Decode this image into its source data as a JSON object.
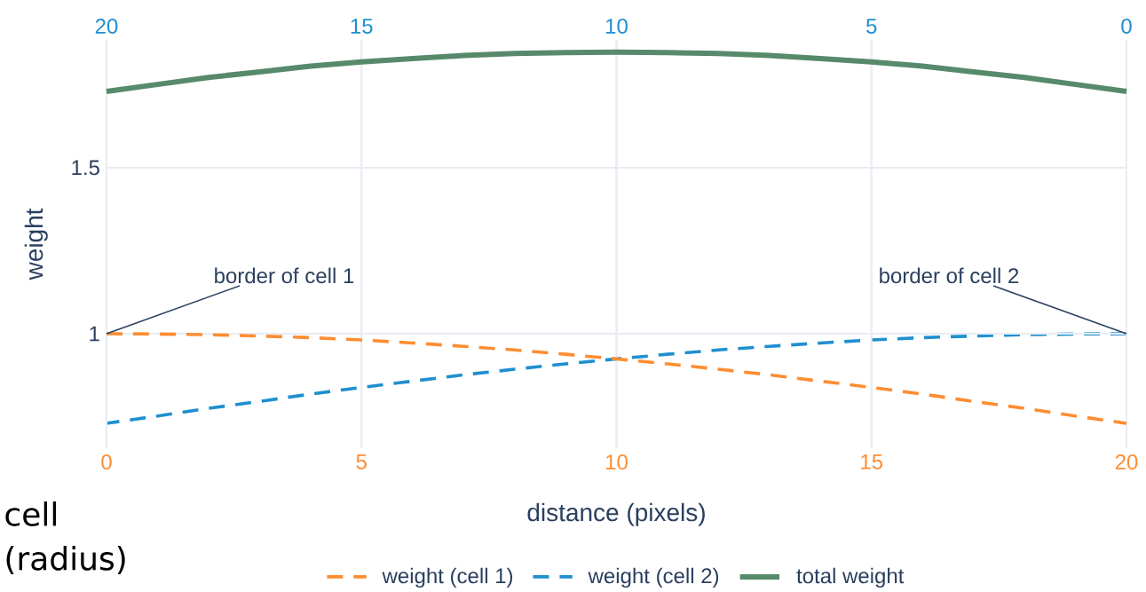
{
  "chart_data": {
    "type": "line",
    "xlabel": "distance (pixels)",
    "ylabel": "weight",
    "xlim": [
      0,
      20
    ],
    "xticks": [
      0,
      5,
      10,
      15,
      20
    ],
    "x2lim": [
      20,
      0
    ],
    "x2ticks": [
      20,
      15,
      10,
      5,
      0
    ],
    "ylim": [
      0.655,
      1.885
    ],
    "yticks": [
      1,
      1.5
    ],
    "grid": true,
    "legend": "bottom",
    "series": [
      {
        "name": "weight (cell 1)",
        "color": "#fd8d32",
        "line_style": "dashed",
        "x": [
          0,
          1,
          2,
          3,
          4,
          5,
          6,
          7,
          8,
          9,
          10,
          11,
          12,
          13,
          14,
          15,
          16,
          17,
          18,
          19,
          20
        ],
        "values": [
          1.0,
          0.999,
          0.997,
          0.993,
          0.988,
          0.981,
          0.972,
          0.962,
          0.951,
          0.938,
          0.924,
          0.909,
          0.893,
          0.876,
          0.857,
          0.838,
          0.818,
          0.796,
          0.775,
          0.752,
          0.73
        ]
      },
      {
        "name": "weight (cell 2)",
        "color": "#1f8fcf",
        "line_style": "dashed",
        "axis": "x2",
        "x": [
          0,
          1,
          2,
          3,
          4,
          5,
          6,
          7,
          8,
          9,
          10,
          11,
          12,
          13,
          14,
          15,
          16,
          17,
          18,
          19,
          20
        ],
        "values": [
          1.0,
          0.999,
          0.997,
          0.993,
          0.988,
          0.981,
          0.972,
          0.962,
          0.951,
          0.938,
          0.924,
          0.909,
          0.893,
          0.876,
          0.857,
          0.838,
          0.818,
          0.796,
          0.775,
          0.752,
          0.73
        ]
      },
      {
        "name": "total weight",
        "color": "#568a6b",
        "line_style": "solid",
        "x": [
          0,
          1,
          2,
          3,
          4,
          5,
          6,
          7,
          8,
          9,
          10,
          11,
          12,
          13,
          14,
          15,
          16,
          17,
          18,
          19,
          20
        ],
        "values": [
          1.73,
          1.751,
          1.772,
          1.789,
          1.806,
          1.819,
          1.829,
          1.838,
          1.844,
          1.847,
          1.848,
          1.847,
          1.844,
          1.838,
          1.829,
          1.819,
          1.806,
          1.789,
          1.772,
          1.751,
          1.73
        ]
      }
    ],
    "annotations": [
      {
        "text": "border of cell 1",
        "x": 0,
        "y": 1
      },
      {
        "text": "border of cell 2",
        "x": 20,
        "y": 1
      },
      "cell",
      "(radius)"
    ]
  }
}
